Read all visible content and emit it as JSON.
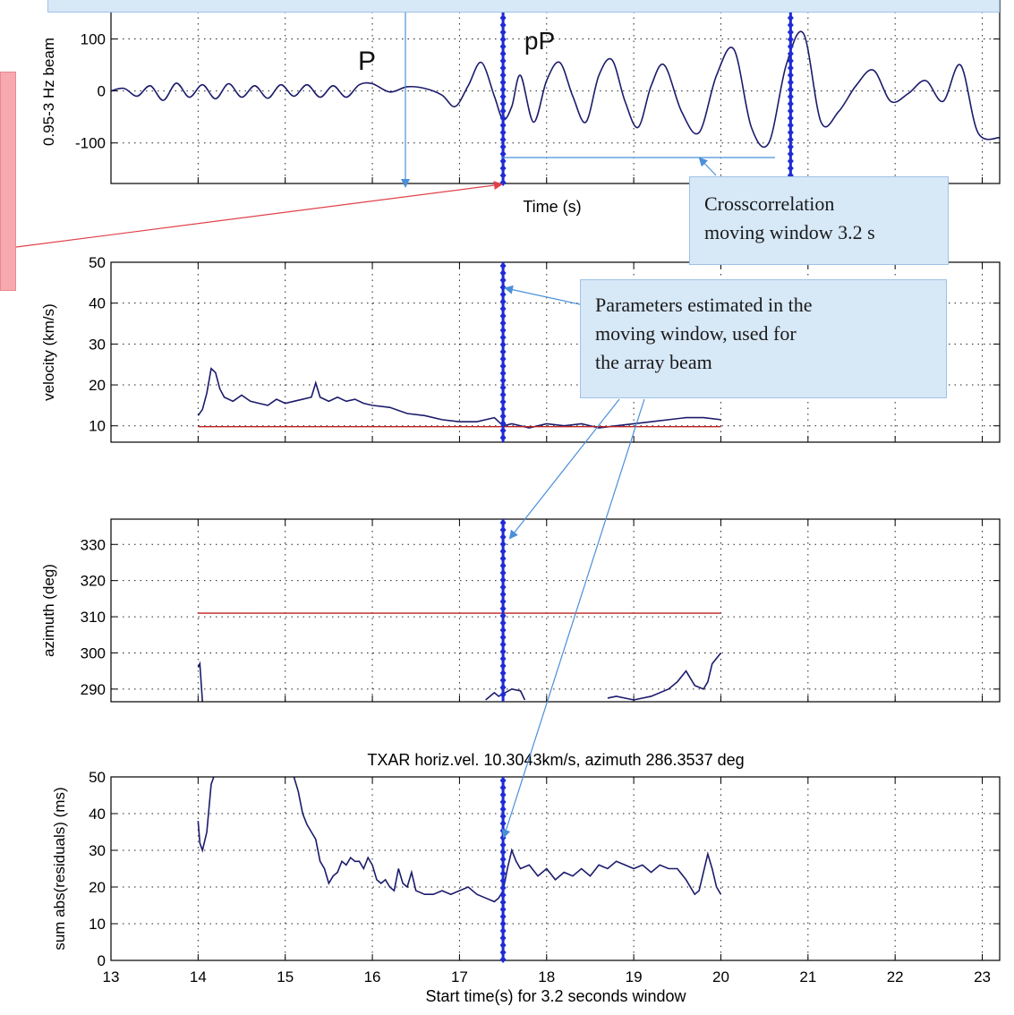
{
  "chart_data": [
    {
      "type": "line",
      "ylabel": "0.95-3 Hz beam",
      "xlabel": "Time (s)",
      "xlim": [
        13,
        23.2
      ],
      "ylim": [
        -178,
        175
      ],
      "yticks": [
        -100,
        0,
        100
      ],
      "grid": true,
      "series": [
        {
          "color": "#1b1b6b",
          "x": [
            13.0,
            13.15,
            13.3,
            13.45,
            13.6,
            13.75,
            13.9,
            14.05,
            14.2,
            14.35,
            14.5,
            14.65,
            14.8,
            14.95,
            15.1,
            15.25,
            15.4,
            15.55,
            15.7,
            15.85,
            16.0,
            16.2,
            16.4,
            16.6,
            16.8,
            16.95,
            17.1,
            17.25,
            17.4,
            17.5,
            17.6,
            17.7,
            17.85,
            18.0,
            18.15,
            18.3,
            18.45,
            18.6,
            18.75,
            18.9,
            19.05,
            19.2,
            19.35,
            19.55,
            19.75,
            19.95,
            20.15,
            20.35,
            20.55,
            20.75,
            20.95,
            21.15,
            21.35,
            21.55,
            21.75,
            21.95,
            22.15,
            22.35,
            22.55,
            22.75,
            22.95,
            23.2
          ],
          "y": [
            0,
            5,
            -10,
            10,
            -18,
            15,
            -12,
            12,
            -15,
            14,
            -12,
            10,
            -14,
            12,
            -10,
            12,
            -12,
            10,
            -12,
            12,
            14,
            -2,
            8,
            5,
            -8,
            -30,
            10,
            55,
            -10,
            -55,
            -30,
            30,
            -60,
            20,
            55,
            -10,
            -60,
            30,
            60,
            -20,
            -70,
            10,
            50,
            -40,
            -80,
            30,
            80,
            -70,
            -100,
            50,
            110,
            -60,
            -40,
            10,
            40,
            -20,
            -5,
            20,
            -20,
            50,
            -80,
            -90
          ]
        }
      ],
      "annotations": [
        "P",
        "pP"
      ]
    },
    {
      "type": "line",
      "ylabel": "velocity (km/s)",
      "xlim": [
        13,
        23.2
      ],
      "ylim": [
        6,
        50
      ],
      "yticks": [
        10,
        20,
        30,
        40,
        50
      ],
      "grid": true,
      "series": [
        {
          "color": "#1b1b6b",
          "x": [
            14.0,
            14.05,
            14.1,
            14.15,
            14.2,
            14.25,
            14.3,
            14.4,
            14.5,
            14.6,
            14.7,
            14.8,
            14.9,
            15.0,
            15.1,
            15.2,
            15.3,
            15.35,
            15.4,
            15.5,
            15.6,
            15.7,
            15.8,
            15.9,
            16.0,
            16.2,
            16.4,
            16.6,
            16.8,
            17.0,
            17.2,
            17.3,
            17.4,
            17.5,
            17.6,
            17.8,
            18.0,
            18.2,
            18.4,
            18.6,
            18.8,
            19.0,
            19.2,
            19.4,
            19.6,
            19.8,
            20.0
          ],
          "y": [
            12.5,
            14,
            18,
            24,
            23,
            19,
            17,
            16,
            17.5,
            16,
            15.5,
            15,
            16.5,
            15.5,
            16,
            16.5,
            17,
            20.5,
            17,
            16,
            17,
            16,
            16.5,
            15.5,
            15,
            14.5,
            13,
            12.5,
            11.5,
            11,
            11,
            11.5,
            12,
            10,
            10.5,
            9.5,
            10.5,
            10,
            10.5,
            9.5,
            10,
            10.5,
            11,
            11.5,
            12,
            12,
            11.5
          ]
        },
        {
          "color": "#c02020",
          "x": [
            14.0,
            20.0
          ],
          "y": [
            9.8,
            9.8
          ]
        }
      ]
    },
    {
      "type": "line",
      "ylabel": "azimuth (deg)",
      "xlim": [
        13,
        23.2
      ],
      "ylim": [
        286.5,
        337
      ],
      "yticks": [
        290,
        300,
        310,
        320,
        330
      ],
      "grid": true,
      "series": [
        {
          "color": "#1b1b6b",
          "x": [
            14.0,
            14.02,
            14.05
          ],
          "y": [
            296,
            297,
            286.5
          ]
        },
        {
          "color": "#1b1b6b",
          "x": [
            17.3,
            17.4,
            17.45,
            17.6,
            17.7,
            17.75
          ],
          "y": [
            287,
            289,
            288,
            290,
            289.5,
            287
          ]
        },
        {
          "color": "#1b1b6b",
          "x": [
            18.7,
            18.8,
            19.0,
            19.2,
            19.4,
            19.5,
            19.6,
            19.7,
            19.8,
            19.85,
            19.9,
            20.0
          ],
          "y": [
            287.5,
            288,
            287,
            288,
            290,
            292,
            295,
            291,
            290,
            292,
            297,
            300
          ]
        },
        {
          "color": "#c02020",
          "x": [
            14.0,
            20.0
          ],
          "y": [
            311,
            311
          ]
        }
      ]
    },
    {
      "type": "line",
      "title": "TXAR horiz.vel. 10.3043km/s, azimuth 286.3537 deg",
      "ylabel": "sum abs(residuals) (ms)",
      "xlabel": "Start time(s) for 3.2 seconds window",
      "xlim": [
        13,
        23.2
      ],
      "ylim": [
        0,
        50
      ],
      "yticks": [
        0,
        10,
        20,
        30,
        40,
        50
      ],
      "xticks": [
        13,
        14,
        15,
        16,
        17,
        18,
        19,
        20,
        21,
        22,
        23
      ],
      "grid": true,
      "series": [
        {
          "color": "#1b1b6b",
          "x": [
            14.0,
            14.02,
            14.05,
            14.1,
            14.15,
            14.18
          ],
          "y": [
            38,
            32,
            30,
            35,
            48,
            50
          ]
        },
        {
          "color": "#1b1b6b",
          "x": [
            15.1,
            15.15,
            15.2,
            15.25,
            15.3,
            15.35,
            15.4,
            15.45,
            15.5,
            15.55,
            15.6,
            15.65,
            15.7,
            15.75,
            15.8,
            15.85,
            15.9,
            15.95,
            16.0,
            16.05,
            16.1,
            16.15,
            16.2,
            16.25,
            16.3,
            16.35,
            16.4,
            16.45,
            16.5,
            16.6,
            16.7,
            16.8,
            16.9,
            17.0,
            17.1,
            17.2,
            17.3,
            17.4,
            17.45,
            17.5,
            17.55,
            17.6,
            17.65,
            17.7,
            17.8,
            17.9,
            18.0,
            18.1,
            18.2,
            18.3,
            18.4,
            18.5,
            18.6,
            18.7,
            18.8,
            18.9,
            19.0,
            19.1,
            19.2,
            19.3,
            19.4,
            19.5,
            19.6,
            19.7,
            19.75,
            19.8,
            19.85,
            19.9,
            19.95,
            20.0
          ],
          "y": [
            50,
            46,
            40,
            37,
            35,
            33,
            27,
            25,
            21,
            23,
            24,
            27,
            26,
            28,
            27,
            27,
            25,
            28,
            26,
            22,
            21,
            22,
            20,
            19,
            25,
            21,
            20,
            24,
            19,
            18,
            18,
            19,
            18,
            19,
            20,
            18,
            17,
            16,
            17,
            19,
            25,
            30,
            27,
            25,
            26,
            23,
            25,
            22,
            24,
            23,
            25,
            23,
            26,
            25,
            27,
            26,
            25,
            26,
            24,
            26,
            25,
            25,
            22,
            18,
            19,
            24,
            29,
            25,
            20,
            18
          ]
        }
      ]
    }
  ],
  "callouts": {
    "xcorr_window": "Crosscorrelation moving window 3.2 s",
    "xcorr_line1": "Crosscorrelation",
    "xcorr_line2": "moving window 3.2 s",
    "params_line1": "Parameters estimated in the",
    "params_line2": "moving window, used for",
    "params_line3": "the array beam"
  },
  "colors": {
    "trace": "#1b1b6b",
    "reference": "#c02020",
    "marker": "#1f2bd6",
    "annotation_arrow": "#4a90d9",
    "red_arrow": "#e0404a"
  }
}
